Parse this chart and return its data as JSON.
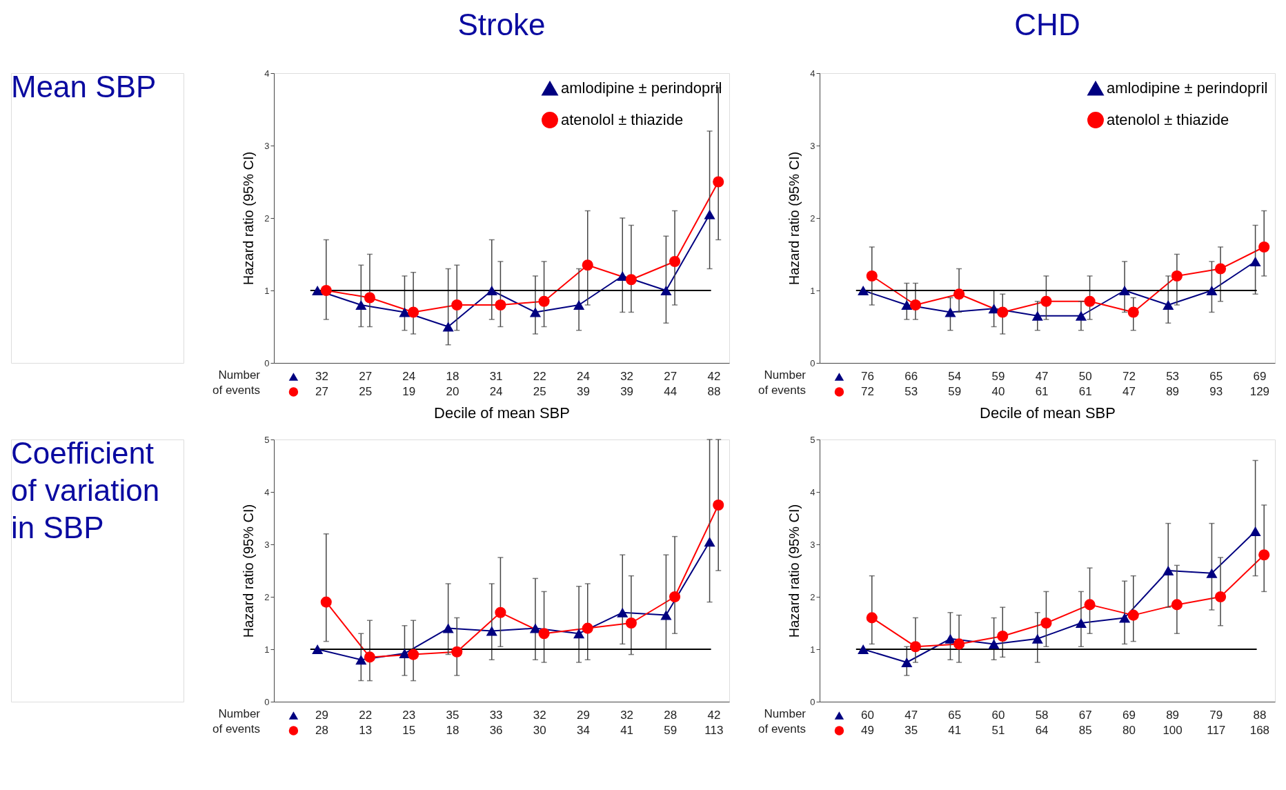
{
  "chart_data": [
    {
      "type": "line",
      "title": "Stroke",
      "subtitle": "Mean SBP",
      "xlabel": "Decile of mean SBP",
      "ylabel": "Hazard  ratio (95% CI)",
      "categories": [
        null,
        null,
        null,
        null,
        null,
        null,
        null,
        null,
        null,
        null
      ],
      "ylim": [
        0,
        4
      ],
      "yticks": [
        0,
        1,
        2,
        3,
        4
      ],
      "legend": "top right",
      "ref_lines": [
        {
          "axis": "y",
          "value": 1,
          "color": "#000000"
        }
      ],
      "annotations": [
        "Number of events",
        "32",
        "27",
        "24",
        "18",
        "31",
        "22",
        "24",
        "32",
        "27",
        "42",
        "27",
        "25",
        "19",
        "20",
        "24",
        "25",
        "39",
        "39",
        "44",
        "88"
      ],
      "series": [
        {
          "name": "amlodipine ± perindopril",
          "color": "#000080",
          "marker": "triangle",
          "values": [
            1.0,
            0.8,
            0.7,
            0.5,
            1.0,
            0.7,
            0.8,
            1.2,
            1.0,
            2.05
          ],
          "errors": [
            null,
            [
              0.5,
              1.35
            ],
            [
              0.45,
              1.2
            ],
            [
              0.25,
              1.3
            ],
            [
              0.6,
              1.7
            ],
            [
              0.4,
              1.2
            ],
            [
              0.45,
              1.3
            ],
            [
              0.7,
              2.0
            ],
            [
              0.55,
              1.75
            ],
            [
              1.3,
              3.2
            ]
          ]
        },
        {
          "name": "atenolol ± thiazide",
          "color": "#ff0000",
          "marker": "circle",
          "values": [
            1.0,
            0.9,
            0.7,
            0.8,
            0.8,
            0.85,
            1.35,
            1.15,
            1.4,
            2.5
          ],
          "errors": [
            [
              0.6,
              1.7
            ],
            [
              0.5,
              1.5
            ],
            [
              0.4,
              1.25
            ],
            [
              0.45,
              1.35
            ],
            [
              0.5,
              1.4
            ],
            [
              0.5,
              1.4
            ],
            [
              0.8,
              2.1
            ],
            [
              0.7,
              1.9
            ],
            [
              0.8,
              2.1
            ],
            [
              1.7,
              3.8
            ]
          ]
        }
      ]
    },
    {
      "type": "line",
      "title": "CHD",
      "xlabel": "Decile of mean SBP",
      "ylabel": "Hazard  ratio (95% CI)",
      "categories": [
        null,
        null,
        null,
        null,
        null,
        null,
        null,
        null,
        null,
        null
      ],
      "ylim": [
        0,
        4
      ],
      "yticks": [
        0,
        1,
        2,
        3,
        4
      ],
      "legend": "top right",
      "ref_lines": [
        {
          "axis": "y",
          "value": 1,
          "color": "#000000"
        }
      ],
      "annotations": [
        "Number of events",
        "76",
        "66",
        "54",
        "59",
        "47",
        "50",
        "72",
        "53",
        "65",
        "69",
        "72",
        "53",
        "59",
        "40",
        "61",
        "61",
        "47",
        "89",
        "93",
        "129"
      ],
      "series": [
        {
          "name": "amlodipine ± perindopril",
          "color": "#000080",
          "marker": "triangle",
          "values": [
            1.0,
            0.8,
            0.7,
            0.75,
            0.65,
            0.65,
            1.0,
            0.8,
            1.0,
            1.4
          ],
          "errors": [
            null,
            [
              0.6,
              1.1
            ],
            [
              0.45,
              0.9
            ],
            [
              0.5,
              1.0
            ],
            [
              0.45,
              0.85
            ],
            [
              0.45,
              0.85
            ],
            [
              0.7,
              1.4
            ],
            [
              0.55,
              1.2
            ],
            [
              0.7,
              1.4
            ],
            [
              0.95,
              1.9
            ]
          ]
        },
        {
          "name": "atenolol ± thiazide",
          "color": "#ff0000",
          "marker": "circle",
          "values": [
            1.2,
            0.8,
            0.95,
            0.7,
            0.85,
            0.85,
            0.7,
            1.2,
            1.3,
            1.6
          ],
          "errors": [
            [
              0.8,
              1.6
            ],
            [
              0.6,
              1.1
            ],
            [
              0.7,
              1.3
            ],
            [
              0.4,
              0.95
            ],
            [
              0.6,
              1.2
            ],
            [
              0.6,
              1.2
            ],
            [
              0.45,
              0.9
            ],
            [
              0.8,
              1.5
            ],
            [
              0.85,
              1.6
            ],
            [
              1.2,
              2.1
            ]
          ]
        }
      ]
    },
    {
      "type": "line",
      "subtitle": "Coefficient of variation in SBP",
      "ylabel": "Hazard  ratio (95% CI)",
      "categories": [
        null,
        null,
        null,
        null,
        null,
        null,
        null,
        null,
        null,
        null
      ],
      "ylim": [
        0,
        5
      ],
      "yticks": [
        0,
        1,
        2,
        3,
        4,
        5
      ],
      "ref_lines": [
        {
          "axis": "y",
          "value": 1,
          "color": "#000000"
        }
      ],
      "annotations": [
        "Number of events",
        "29",
        "22",
        "23",
        "35",
        "33",
        "32",
        "29",
        "32",
        "28",
        "42",
        "28",
        "13",
        "15",
        "18",
        "36",
        "30",
        "34",
        "41",
        "59",
        "113"
      ],
      "series": [
        {
          "color": "#000080",
          "marker": "triangle",
          "values": [
            1.0,
            0.8,
            0.92,
            1.4,
            1.35,
            1.4,
            1.3,
            1.7,
            1.65,
            3.05
          ],
          "errors": [
            null,
            [
              0.4,
              1.3
            ],
            [
              0.5,
              1.45
            ],
            [
              0.9,
              2.25
            ],
            [
              0.8,
              2.25
            ],
            [
              0.8,
              2.35
            ],
            [
              0.75,
              2.2
            ],
            [
              1.1,
              2.8
            ],
            [
              1.0,
              2.8
            ],
            [
              1.9,
              5
            ]
          ]
        },
        {
          "color": "#ff0000",
          "marker": "circle",
          "values": [
            1.9,
            0.85,
            0.9,
            0.95,
            1.7,
            1.3,
            1.4,
            1.5,
            2.0,
            3.75
          ],
          "errors": [
            [
              1.15,
              3.2
            ],
            [
              0.4,
              1.55
            ],
            [
              0.4,
              1.55
            ],
            [
              0.5,
              1.6
            ],
            [
              1.05,
              2.75
            ],
            [
              0.75,
              2.1
            ],
            [
              0.8,
              2.25
            ],
            [
              0.9,
              2.4
            ],
            [
              1.3,
              3.15
            ],
            [
              2.5,
              5
            ]
          ]
        }
      ]
    },
    {
      "type": "line",
      "ylabel": "Hazard  ratio (95% CI)",
      "categories": [
        null,
        null,
        null,
        null,
        null,
        null,
        null,
        null,
        null,
        null
      ],
      "ylim": [
        0,
        5
      ],
      "yticks": [
        0,
        1,
        2,
        3,
        4,
        5
      ],
      "ref_lines": [
        {
          "axis": "y",
          "value": 1,
          "color": "#000000"
        }
      ],
      "annotations": [
        "Number of events",
        "60",
        "47",
        "65",
        "60",
        "58",
        "67",
        "69",
        "89",
        "79",
        "88",
        "49",
        "35",
        "41",
        "51",
        "64",
        "85",
        "80",
        "100",
        "117",
        "168"
      ],
      "series": [
        {
          "color": "#000080",
          "marker": "triangle",
          "values": [
            1.0,
            0.75,
            1.2,
            1.1,
            1.2,
            1.5,
            1.6,
            2.5,
            2.45,
            3.25
          ],
          "errors": [
            null,
            [
              0.5,
              1.05
            ],
            [
              0.8,
              1.7
            ],
            [
              0.8,
              1.6
            ],
            [
              0.75,
              1.7
            ],
            [
              1.05,
              2.1
            ],
            [
              1.1,
              2.3
            ],
            [
              1.8,
              3.4
            ],
            [
              1.75,
              3.4
            ],
            [
              2.4,
              4.6
            ]
          ]
        },
        {
          "color": "#ff0000",
          "marker": "circle",
          "values": [
            1.6,
            1.05,
            1.1,
            1.25,
            1.5,
            1.85,
            1.65,
            1.85,
            2.0,
            2.8
          ],
          "errors": [
            [
              1.1,
              2.4
            ],
            [
              0.75,
              1.6
            ],
            [
              0.75,
              1.65
            ],
            [
              0.85,
              1.8
            ],
            [
              1.05,
              2.1
            ],
            [
              1.3,
              2.55
            ],
            [
              1.15,
              2.4
            ],
            [
              1.3,
              2.6
            ],
            [
              1.45,
              2.75
            ],
            [
              2.1,
              3.75
            ]
          ]
        }
      ]
    }
  ]
}
